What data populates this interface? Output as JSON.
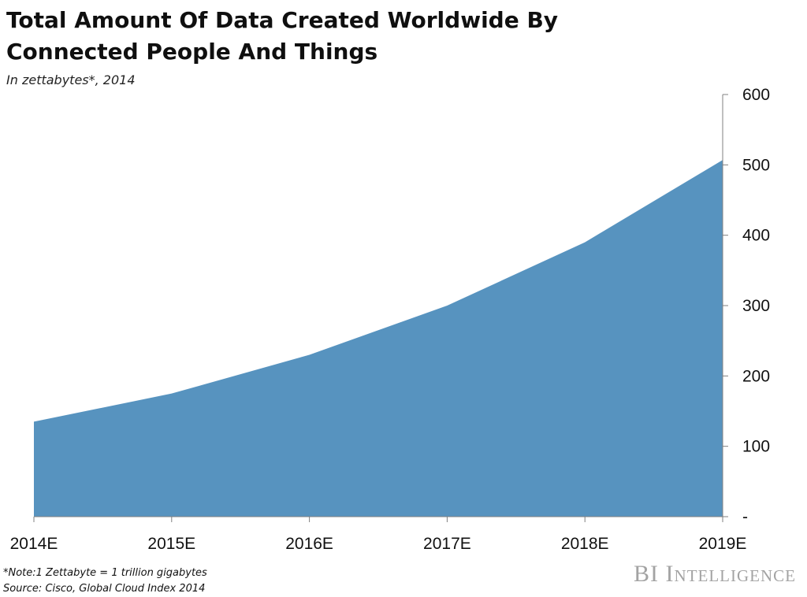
{
  "title": "Total Amount Of Data Created Worldwide By Connected People And Things",
  "subtitle": "In zettabytes*, 2014",
  "note": "*Note:1 Zettabyte = 1 trillion gigabytes",
  "source": "Source: Cisco, Global Cloud Index 2014",
  "brand": "BI Intelligence",
  "colors": {
    "area": "#5793bf",
    "axis": "#808080"
  },
  "chart_data": {
    "type": "area",
    "categories": [
      "2014E",
      "2015E",
      "2016E",
      "2017E",
      "2018E",
      "2019E"
    ],
    "values": [
      135,
      175,
      230,
      300,
      390,
      507
    ],
    "ylim": [
      0,
      600
    ],
    "y_ticks": [
      0,
      100,
      200,
      300,
      400,
      500,
      600
    ],
    "y_tick_labels": [
      "-",
      "100",
      "200",
      "300",
      "400",
      "500",
      "600"
    ],
    "y_axis_side": "right",
    "grid": false,
    "legend": "none"
  }
}
